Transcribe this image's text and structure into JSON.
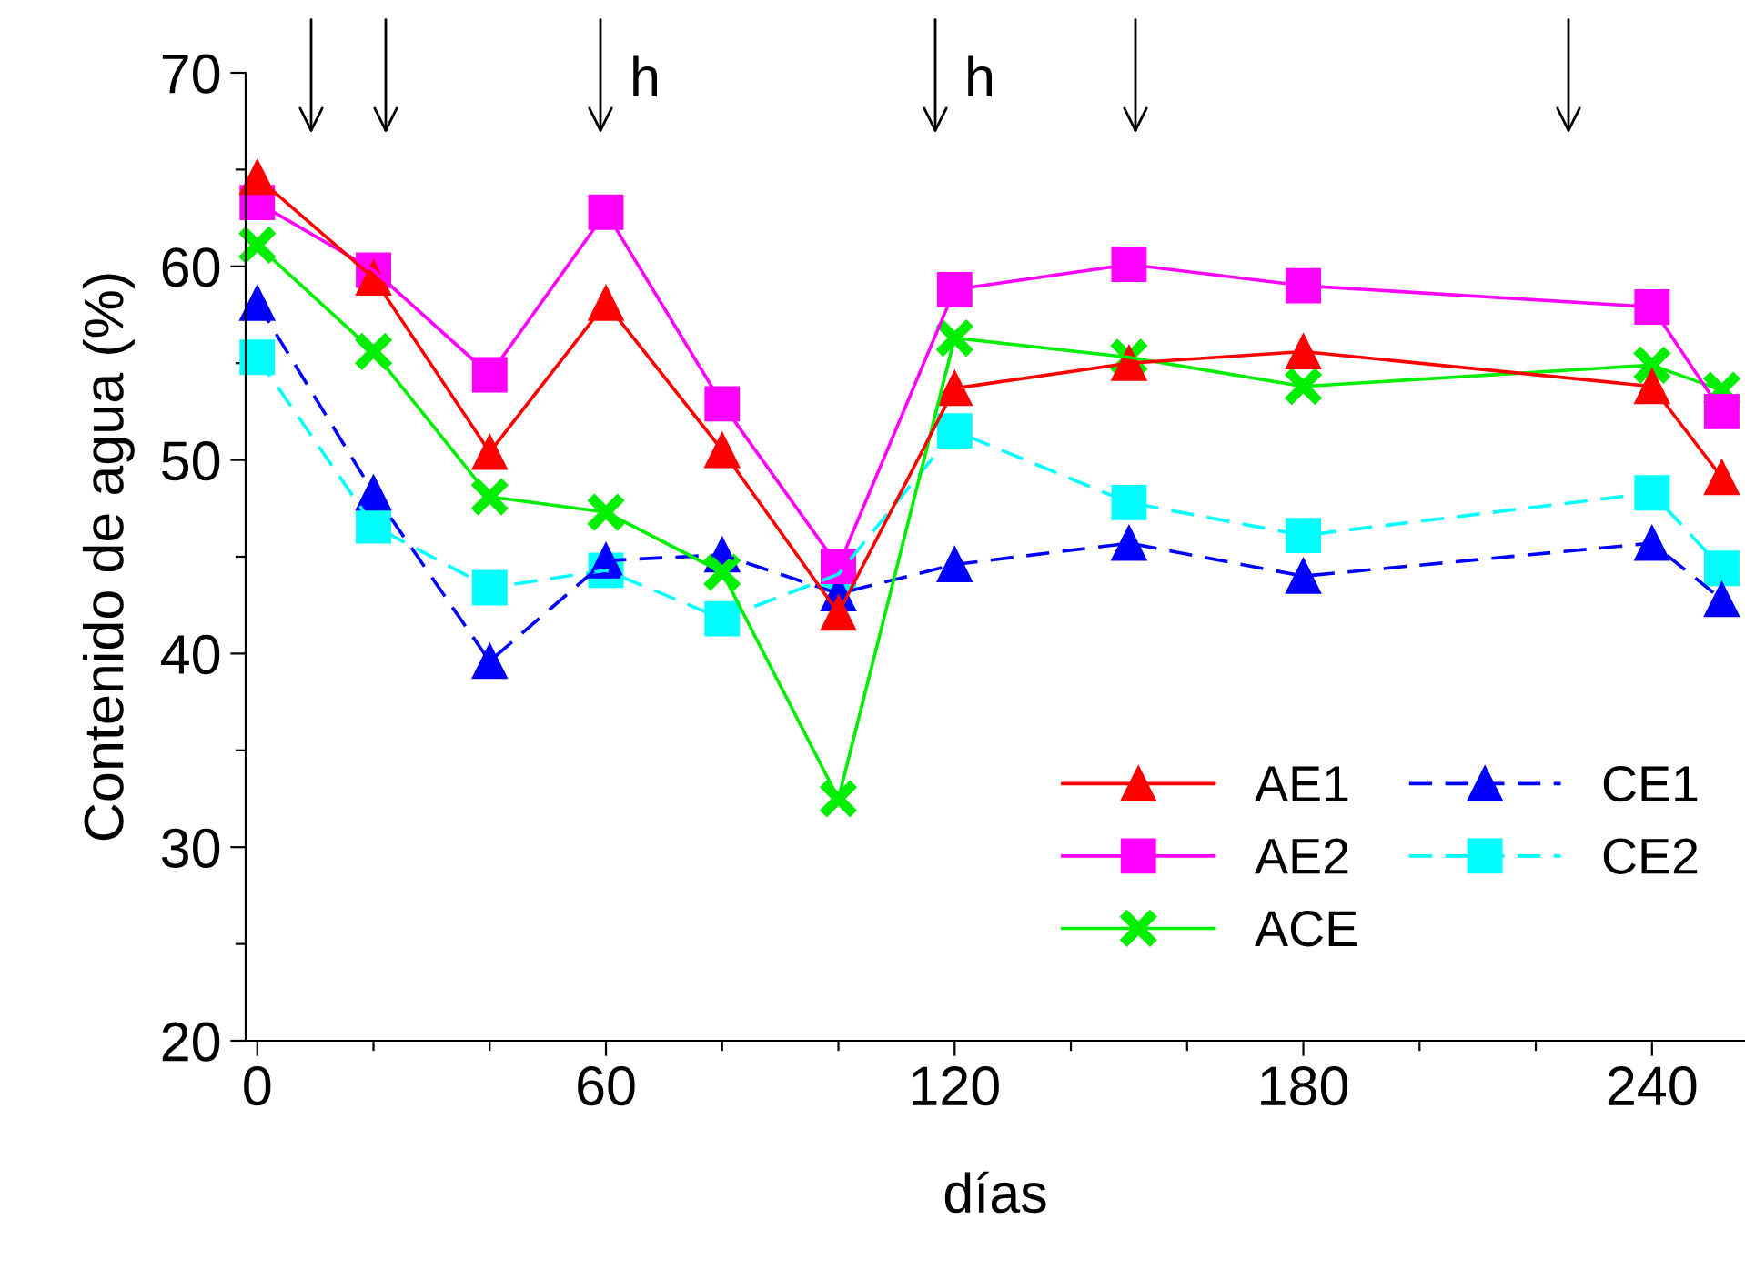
{
  "chart_data": {
    "type": "line",
    "xlabel": "días",
    "ylabel": "Contenido de agua (%)",
    "x": [
      0,
      20,
      40,
      60,
      80,
      100,
      120,
      150,
      180,
      240,
      252
    ],
    "series": [
      {
        "name": "AE1",
        "color": "#ff0000",
        "marker": "triangle",
        "line_style": "solid",
        "values": [
          64.6,
          59.4,
          50.4,
          58.1,
          50.5,
          42.1,
          53.7,
          55.0,
          55.6,
          53.8,
          49.1
        ]
      },
      {
        "name": "AE2",
        "color": "#ff00ff",
        "marker": "square",
        "line_style": "solid",
        "values": [
          63.3,
          59.8,
          54.4,
          62.8,
          52.9,
          44.5,
          58.8,
          60.1,
          59.0,
          57.9,
          52.5
        ]
      },
      {
        "name": "ACE",
        "color": "#00ee00",
        "marker": "cross",
        "line_style": "solid",
        "values": [
          61.1,
          55.6,
          48.1,
          47.3,
          44.2,
          32.5,
          56.3,
          55.3,
          53.8,
          54.9,
          53.6
        ]
      },
      {
        "name": "CE1",
        "color": "#0000ff",
        "marker": "triangle",
        "line_style": "dashed",
        "values": [
          58.1,
          48.3,
          39.6,
          44.8,
          45.1,
          43.1,
          44.6,
          45.7,
          44.0,
          45.7,
          42.8
        ]
      },
      {
        "name": "CE2",
        "color": "#00ffff",
        "marker": "square",
        "line_style": "dashed",
        "values": [
          55.3,
          46.6,
          43.4,
          44.3,
          41.8,
          44.1,
          51.5,
          47.8,
          46.1,
          48.3,
          44.4
        ]
      }
    ],
    "xlim": [
      -2,
      256
    ],
    "ylim": [
      20,
      70
    ],
    "xticks": [
      0,
      {
        "value": 20,
        "label": null
      },
      {
        "value": 40,
        "label": null
      },
      60,
      {
        "value": 80,
        "label": null
      },
      {
        "value": 100,
        "label": null
      },
      120,
      {
        "value": 140,
        "label": null
      },
      {
        "value": 160,
        "label": null
      },
      180,
      {
        "value": 200,
        "label": null
      },
      {
        "value": 220,
        "label": null
      },
      240
    ],
    "yticks": [
      20,
      {
        "value": 25,
        "label": null
      },
      30,
      {
        "value": 35,
        "label": null
      },
      40,
      {
        "value": 45,
        "label": null
      },
      50,
      {
        "value": 55,
        "label": null
      },
      60,
      {
        "value": 65,
        "label": null
      },
      70
    ],
    "annotations": [
      "h",
      "h"
    ],
    "grid": false,
    "legend": "bottom right"
  }
}
